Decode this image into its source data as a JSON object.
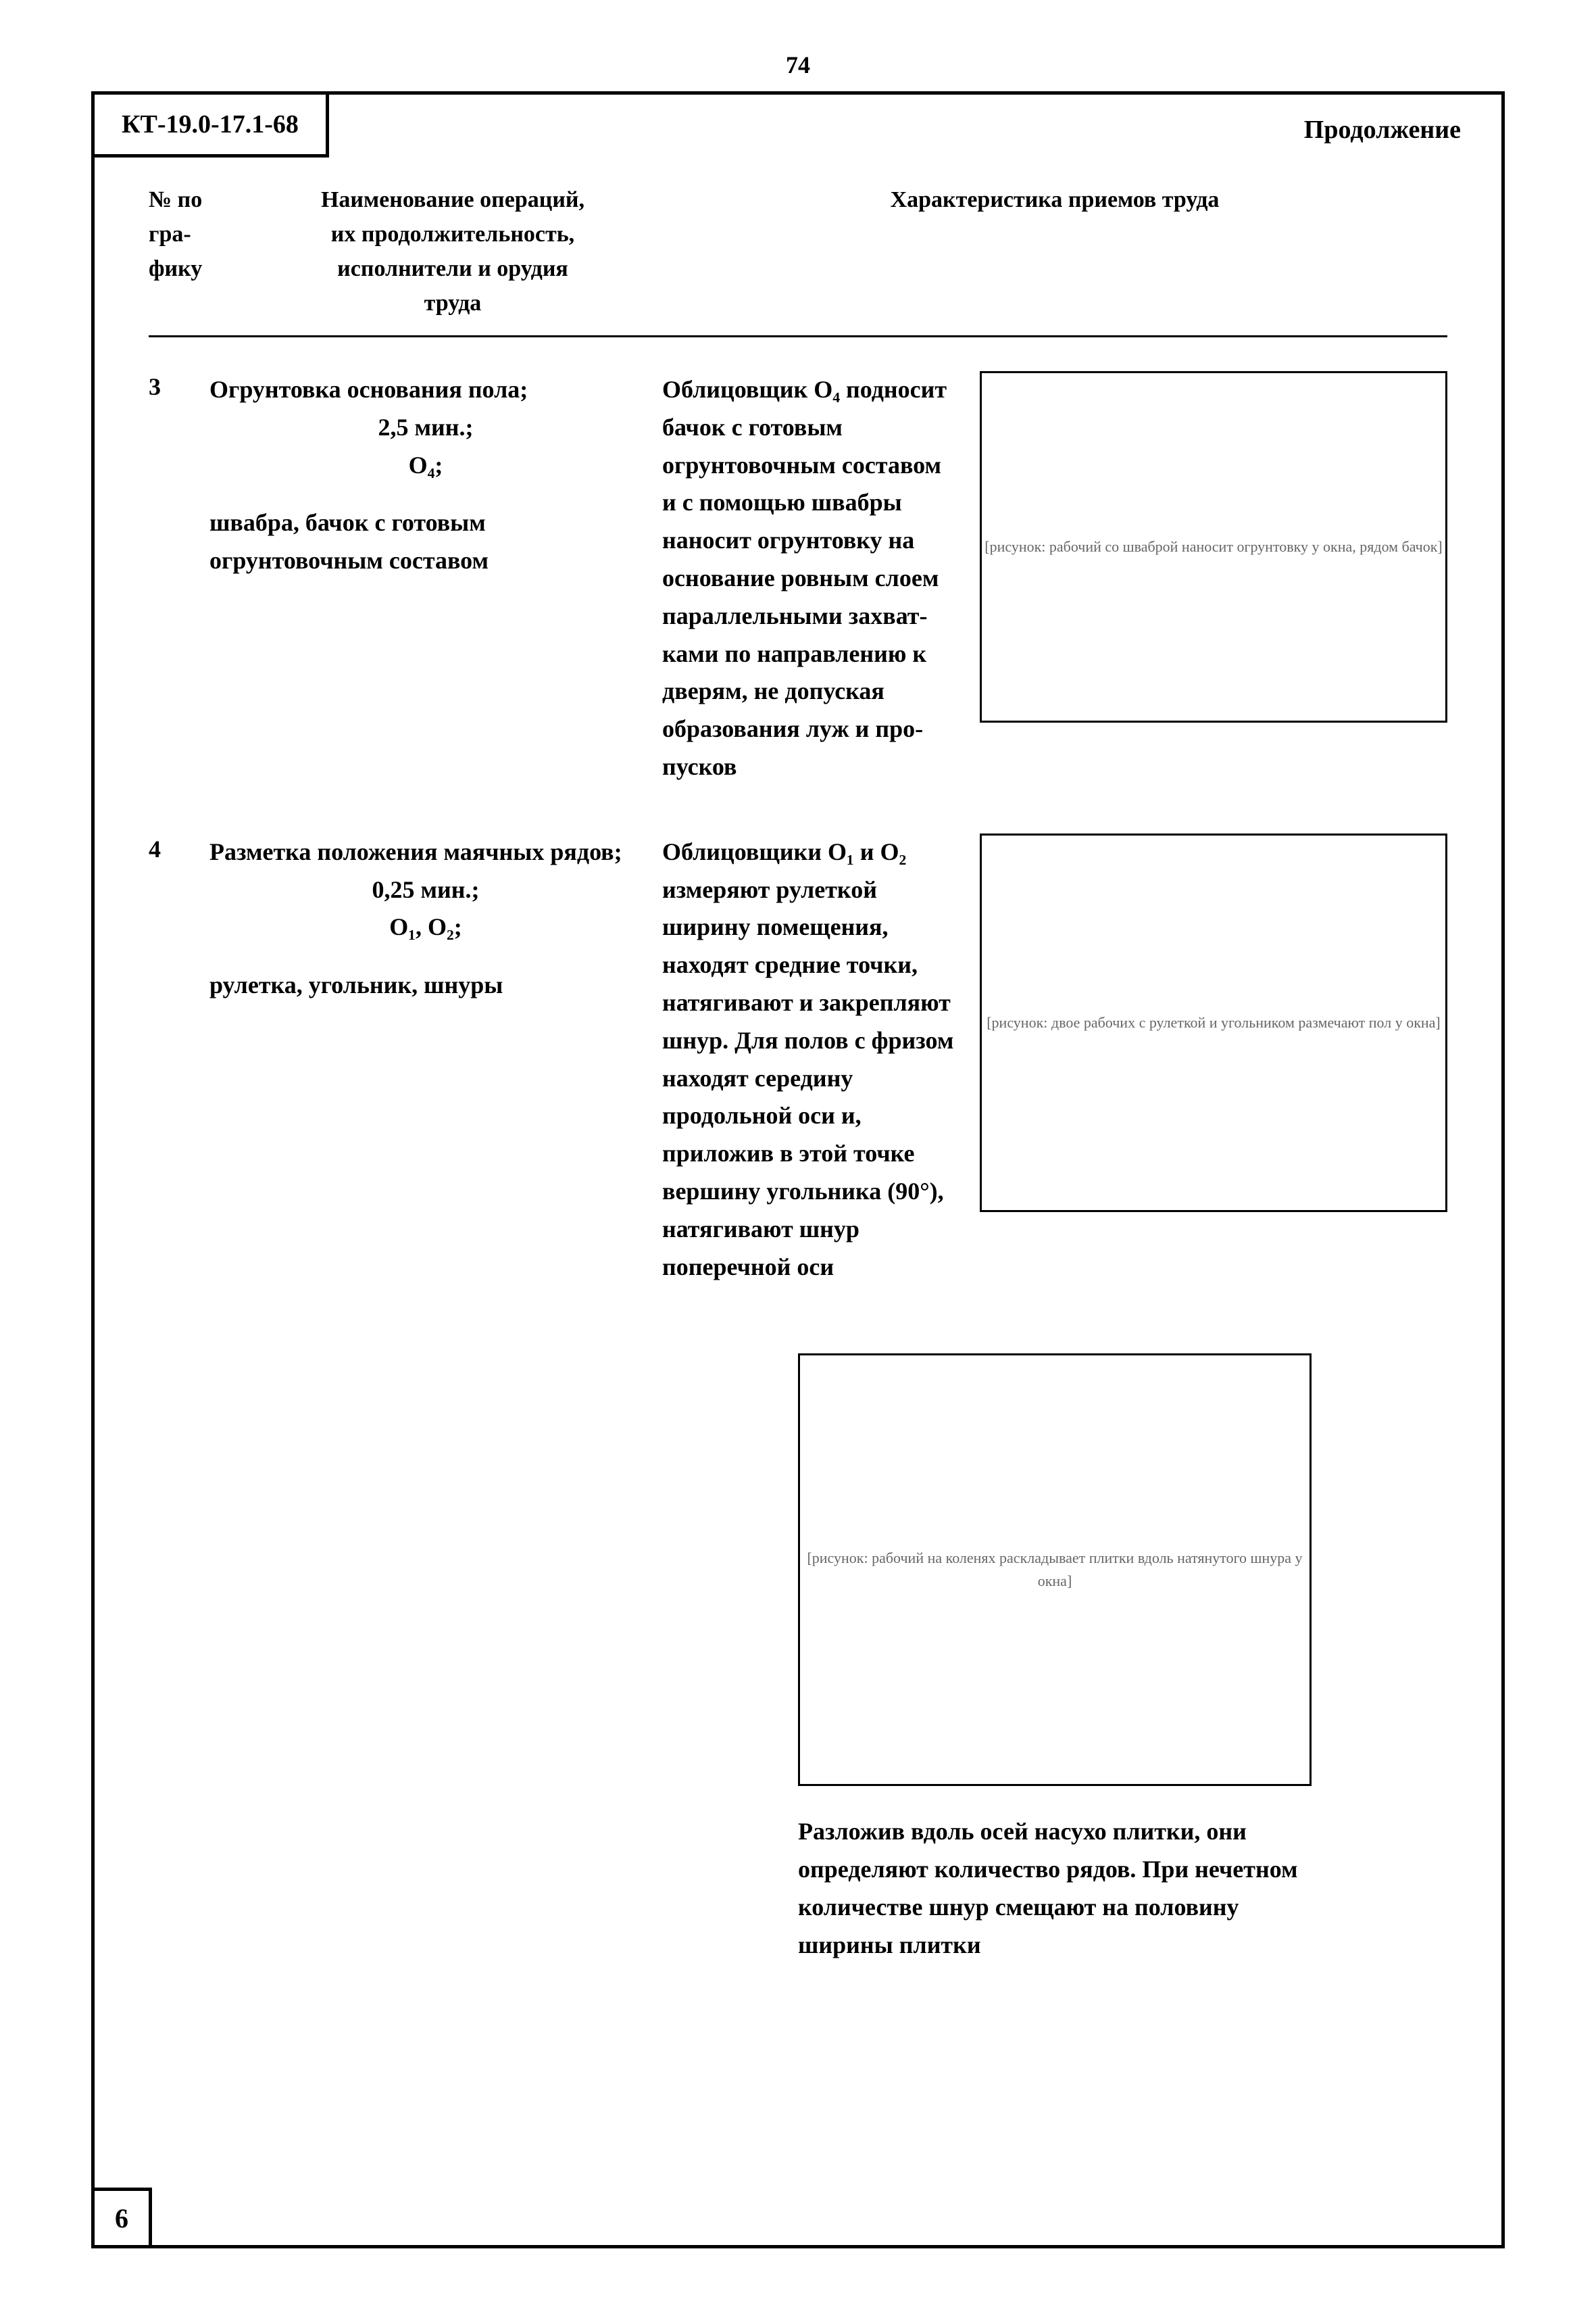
{
  "page_number_top": "74",
  "doc_code": "КТ-19.0-17.1-68",
  "continuation": "Продолжение",
  "header": {
    "col_num": "№ по гра-\nфику",
    "col_name": "Наименование операций,\nих продолжительность,\nисполнители и орудия\nтруда",
    "col_char": "Характеристика приемов труда"
  },
  "rows": [
    {
      "num": "3",
      "name_title": "Огрунтовка основания пола;",
      "name_duration": "2,5 мин.;",
      "name_performers": "О₄;",
      "name_tools": "швабра, бачок с готовым огрунтовочным составом",
      "char_text": "Облицовщик О₄ подносит бачок с готовым огрунтовоч­ным составом и с помощью швабры наносит огрунтовку на основание ров­ным слоем парал­лельными захват­ками по направле­нию к дверям, не допуская образо­вания луж и про­пусков",
      "illus_alt": "[рисунок: рабочий со шваброй наносит огрунтовку у окна, рядом бачок]"
    },
    {
      "num": "4",
      "name_title": "Разметка положения маячных рядов;",
      "name_duration": "0,25 мин.;",
      "name_performers": "О₁, О₂;",
      "name_tools": "рулетка, угольник, шнуры",
      "char_text": "Облицовщики О₁ и О₂ измеряют рулет­кой ширину поме­щения, находят сред­ние точки, натягива­ют и закрепляют шнур. Для полов с фризом находят се­редину продольной оси и, приложив в этой точке верши­ну угольника (90°), натягивают шнур поперечной оси",
      "illus_alt": "[рисунок: двое рабочих с рулеткой и угольником размечают пол у окна]"
    }
  ],
  "bottom": {
    "illus_alt": "[рисунок: рабочий на коленях раскладывает плитки вдоль натянутого шнура у окна]",
    "text": "Разложив вдоль осей насухо плитки, они определяют количество рядов. При нечетном количестве шнур смещают на половину ширины плитки"
  },
  "page_foot": "6"
}
